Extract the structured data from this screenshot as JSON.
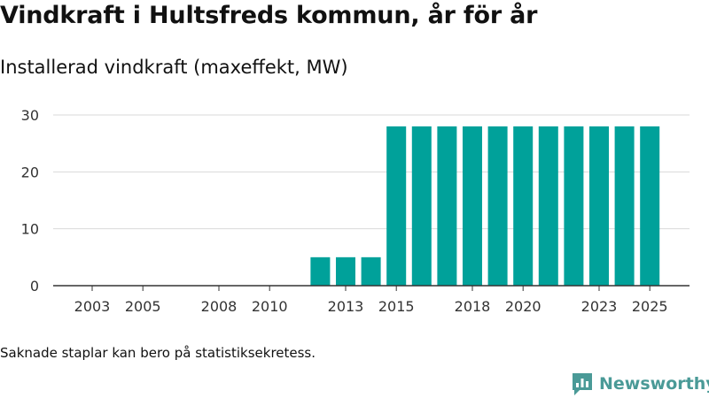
{
  "header": {
    "title": "Vindkraft i Hultsfreds kommun, år för år",
    "subtitle": "Installerad vindkraft (maxeffekt, MW)"
  },
  "footnote": "Saknade staplar kan bero på statistiksekretess.",
  "brand": {
    "name": "Newsworthy",
    "icon": "newsworthy-logo-icon",
    "color": "#4a9a97"
  },
  "chart_data": {
    "type": "bar",
    "title": "Installerad vindkraft (maxeffekt, MW)",
    "xlabel": "",
    "ylabel": "",
    "categories": [
      "2003",
      "2004",
      "2005",
      "2006",
      "2007",
      "2008",
      "2009",
      "2010",
      "2011",
      "2012",
      "2013",
      "2014",
      "2015",
      "2016",
      "2017",
      "2018",
      "2019",
      "2020",
      "2021",
      "2022",
      "2023",
      "2024",
      "2025"
    ],
    "values": [
      null,
      null,
      null,
      null,
      null,
      null,
      null,
      null,
      null,
      5,
      5,
      5,
      28,
      28,
      28,
      28,
      28,
      28,
      28,
      28,
      28,
      28,
      28
    ],
    "x_tick_labels": [
      "2003",
      "2005",
      "2008",
      "2010",
      "2013",
      "2015",
      "2018",
      "2020",
      "2023",
      "2025"
    ],
    "ylim": [
      0,
      30
    ],
    "y_ticks": [
      0,
      10,
      20,
      30
    ],
    "grid": true,
    "bar_color": "#00a19a"
  }
}
